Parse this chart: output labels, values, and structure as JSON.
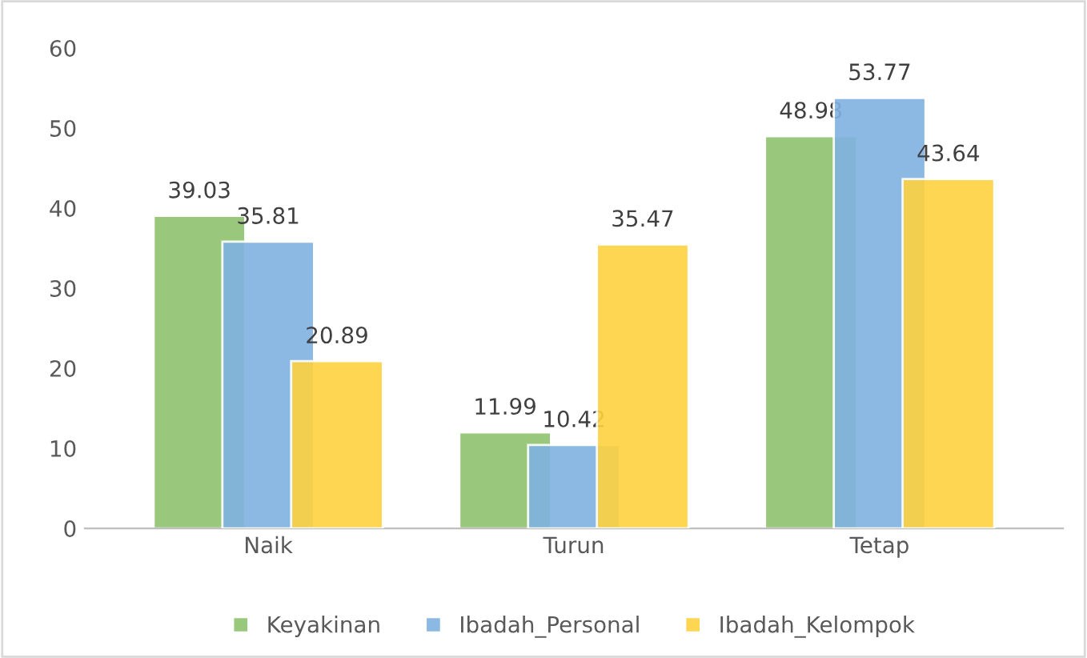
{
  "chart_data": {
    "type": "bar",
    "categories": [
      "Naik",
      "Turun",
      "Tetap"
    ],
    "series": [
      {
        "name": "Keyakinan",
        "color": "#8fc370",
        "values": [
          39.03,
          11.99,
          48.98
        ]
      },
      {
        "name": "Ibadah_Personal",
        "color": "#80b2e2",
        "values": [
          35.81,
          10.42,
          53.77
        ]
      },
      {
        "name": "Ibadah_Kelompok",
        "color": "#ffd23f",
        "values": [
          20.89,
          35.47,
          43.64
        ]
      }
    ],
    "ylim": [
      0,
      60
    ],
    "yticks": [
      0,
      10,
      20,
      30,
      40,
      50,
      60
    ],
    "data_labels": true,
    "legend": "bottom",
    "grid": false
  }
}
